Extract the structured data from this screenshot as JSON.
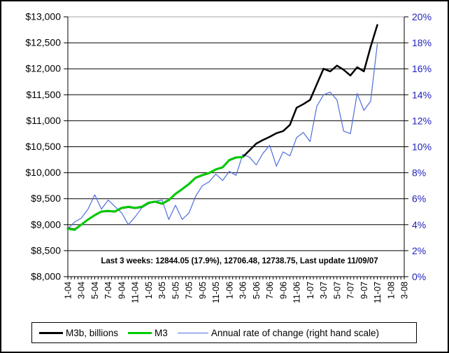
{
  "chart_data": {
    "type": "line",
    "title": "",
    "annotation": "Last 3 weeks: 12844.05 (17.9%), 12706.48, 12738.75, Last update 11/09/07",
    "legend_position": "bottom",
    "grid": "horizontal",
    "x_tick_labels": [
      "1-04",
      "3-04",
      "5-04",
      "7-04",
      "9-04",
      "11-04",
      "1-05",
      "3-05",
      "5-05",
      "7-05",
      "9-05",
      "11-05",
      "1-06",
      "3-06",
      "5-06",
      "7-06",
      "9-06",
      "11-06",
      "1-07",
      "3-07",
      "5-07",
      "7-07",
      "9-07",
      "11-07",
      "1-08",
      "3-08"
    ],
    "months": [
      "1-04",
      "2-04",
      "3-04",
      "4-04",
      "5-04",
      "6-04",
      "7-04",
      "8-04",
      "9-04",
      "10-04",
      "11-04",
      "12-04",
      "1-05",
      "2-05",
      "3-05",
      "4-05",
      "5-05",
      "6-05",
      "7-05",
      "8-05",
      "9-05",
      "10-05",
      "11-05",
      "12-05",
      "1-06",
      "2-06",
      "3-06",
      "4-06",
      "5-06",
      "6-06",
      "7-06",
      "8-06",
      "9-06",
      "10-06",
      "11-06",
      "12-06",
      "1-07",
      "2-07",
      "3-07",
      "4-07",
      "5-07",
      "6-07",
      "7-07",
      "8-07",
      "9-07",
      "10-07",
      "11-07"
    ],
    "left_axis": {
      "min": 8000,
      "max": 13000,
      "step": 500,
      "tick_labels": [
        "$13,000",
        "$12,500",
        "$12,000",
        "$11,500",
        "$11,000",
        "$10,500",
        "$10,000",
        "$9,500",
        "$9,000",
        "$8,500",
        "$8,000"
      ],
      "color": "#000000"
    },
    "right_axis": {
      "min": 0,
      "max": 20,
      "step": 2,
      "tick_labels": [
        "20%",
        "18%",
        "16%",
        "14%",
        "12%",
        "10%",
        "8%",
        "6%",
        "4%",
        "2%",
        "0%"
      ],
      "color": "#2222bb"
    },
    "x_axis_total_months": 50,
    "series": [
      {
        "name": "M3b, billions",
        "color": "#000000",
        "width": 2.5,
        "axis": "left",
        "values": [
          8930,
          8910,
          9000,
          9100,
          9180,
          9250,
          9260,
          9250,
          9320,
          9340,
          9320,
          9340,
          9420,
          9440,
          9400,
          9470,
          9590,
          9680,
          9780,
          9900,
          9950,
          9990,
          10060,
          10100,
          10240,
          10290,
          10300,
          10430,
          10560,
          10630,
          10690,
          10760,
          10800,
          10920,
          11250,
          11320,
          11400,
          11700,
          12000,
          11950,
          12060,
          11980,
          11870,
          12030,
          11950,
          12420,
          12844
        ]
      },
      {
        "name": "M3",
        "color": "#00cc00",
        "width": 3,
        "axis": "left",
        "values": [
          8920,
          8900,
          9000,
          9100,
          9185,
          9255,
          9265,
          9255,
          9325,
          9345,
          9325,
          9345,
          9425,
          9445,
          9405,
          9475,
          9595,
          9685,
          9785,
          9905,
          9955,
          9995,
          10065,
          10105,
          10245,
          10295,
          10300
        ]
      },
      {
        "name": "Annual rate of change (right hand scale)",
        "color": "#4f6edc",
        "width": 1.2,
        "axis": "right",
        "values": [
          3.7,
          4.2,
          4.5,
          5.2,
          6.3,
          5.2,
          5.9,
          5.4,
          4.9,
          4.0,
          4.6,
          5.3,
          5.6,
          5.8,
          5.9,
          4.4,
          5.5,
          4.4,
          4.9,
          6.2,
          7.0,
          7.3,
          7.9,
          7.4,
          8.1,
          7.8,
          9.4,
          9.2,
          8.6,
          9.5,
          10.1,
          8.5,
          9.6,
          9.3,
          10.7,
          11.1,
          10.4,
          13.1,
          14.0,
          14.2,
          13.6,
          11.2,
          11.0,
          14.1,
          12.8,
          13.5,
          17.9
        ]
      }
    ],
    "last_values": {
      "week1": "12844.05",
      "week1_rate": "17.9%",
      "week2": "12706.48",
      "week3": "12738.75",
      "last_update": "11/09/07"
    }
  },
  "colors": {
    "background": "#ffffff",
    "border": "#000000",
    "gridline": "#000000",
    "plot_top_border": "#a3a3a3",
    "right_axis_text": "#2222bb"
  }
}
